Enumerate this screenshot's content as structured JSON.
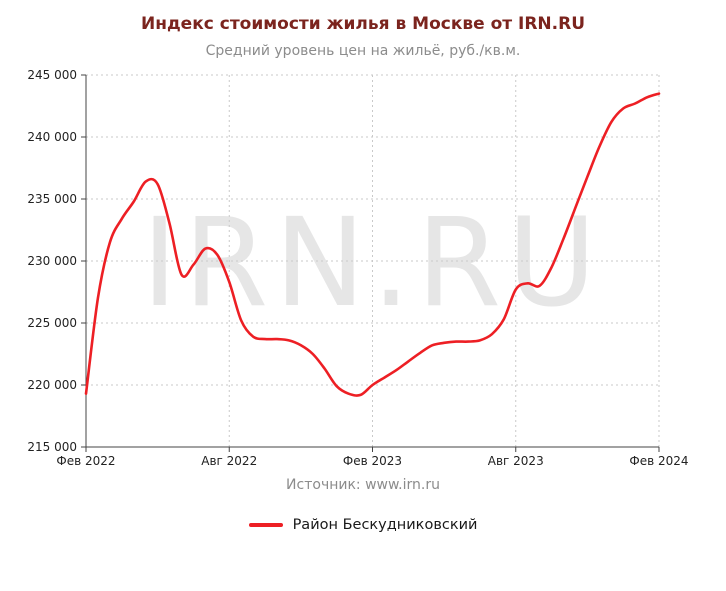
{
  "footer": {
    "source": "Источник: www.irn.ru"
  },
  "colors": {
    "title": "#7b241e",
    "muted": "#8c8c8c",
    "line": "#ed1f24",
    "grid": "#c9c9c9",
    "axis": "#444444",
    "tick_text": "#222222",
    "watermark": "#e6e6e6"
  },
  "chart_data": {
    "type": "line",
    "title": "Индекс стоимости жилья в Москве от IRN.RU",
    "subtitle": "Средний уровень цен на жильё, руб./кв.м.",
    "watermark": "IRN.RU",
    "xlabel": "",
    "ylabel": "",
    "ylim": [
      215000,
      245000
    ],
    "xlim_months": [
      0,
      24
    ],
    "grid": "dashed",
    "legend_position": "bottom",
    "y_ticks": [
      215000,
      220000,
      225000,
      230000,
      235000,
      240000,
      245000
    ],
    "y_tick_labels": [
      "215 000",
      "220 000",
      "225 000",
      "230 000",
      "235 000",
      "240 000",
      "245 000"
    ],
    "x_ticks": [
      {
        "month": 0,
        "label": "Фев 2022"
      },
      {
        "month": 6,
        "label": "Авг 2022"
      },
      {
        "month": 12,
        "label": "Фев 2023"
      },
      {
        "month": 18,
        "label": "Авг 2023"
      },
      {
        "month": 24,
        "label": "Фев 2024"
      }
    ],
    "series": [
      {
        "name": "Район Бескудниковский",
        "color": "#ed1f24",
        "x_months": [
          0,
          0.5,
          1,
          1.5,
          2,
          2.5,
          3,
          3.5,
          4,
          4.5,
          5,
          5.5,
          6,
          6.5,
          7,
          7.5,
          8,
          8.5,
          9,
          9.5,
          10,
          10.5,
          11,
          11.5,
          12,
          12.5,
          13,
          13.5,
          14,
          14.5,
          15,
          15.5,
          16,
          16.5,
          17,
          17.5,
          18,
          18.5,
          19,
          19.5,
          20,
          20.5,
          21,
          21.5,
          22,
          22.5,
          23,
          23.5,
          24
        ],
        "values": [
          219300,
          227000,
          231500,
          233400,
          234800,
          236400,
          236200,
          233000,
          228900,
          229700,
          231000,
          230500,
          228300,
          225200,
          223900,
          223700,
          223700,
          223600,
          223200,
          222500,
          221300,
          219900,
          219300,
          219200,
          220000,
          220600,
          221200,
          221900,
          222600,
          223200,
          223400,
          223500,
          223500,
          223600,
          224100,
          225300,
          227700,
          228200,
          228000,
          229500,
          231800,
          234300,
          236800,
          239200,
          241200,
          242300,
          242700,
          243200,
          243500
        ]
      }
    ]
  }
}
